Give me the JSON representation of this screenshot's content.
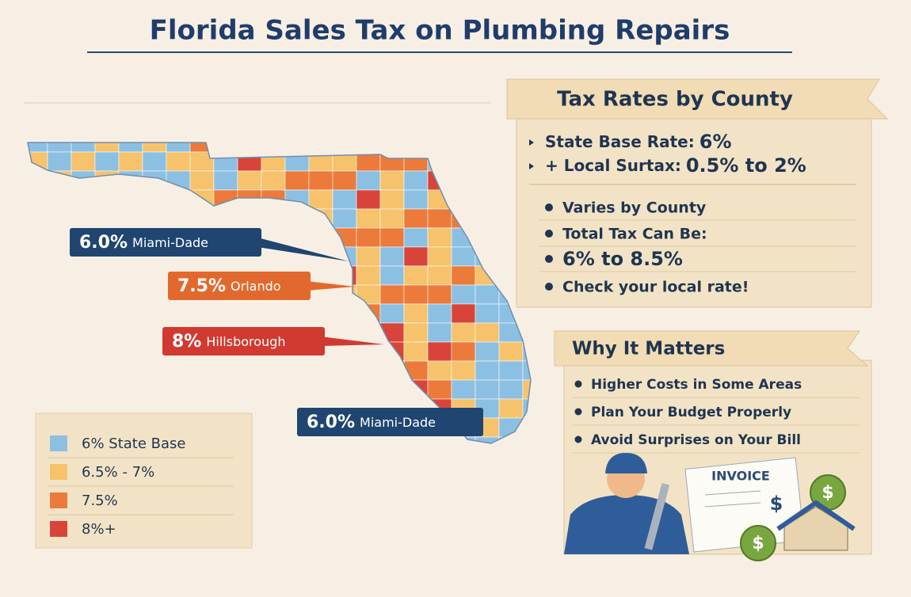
{
  "title": "Florida Sales Tax on Plumbing Repairs",
  "map_callouts": [
    {
      "rate": "6.0%",
      "place": "Miami-Dade",
      "color": "#1f4570"
    },
    {
      "rate": "7.5%",
      "place": "Orlando",
      "color": "#e2692d"
    },
    {
      "rate": "8%",
      "place": "Hillsborough",
      "color": "#d13a30"
    },
    {
      "rate": "6.0%",
      "place": "Miami-Dade",
      "color": "#1f4570"
    }
  ],
  "legend": [
    {
      "label": "6% State Base",
      "color": "#8cc0e3"
    },
    {
      "label": "6.5% - 7%",
      "color": "#f6c26b"
    },
    {
      "label": "7.5%",
      "color": "#ec7a3a"
    },
    {
      "label": "8%+",
      "color": "#d9443a"
    }
  ],
  "tax_panel": {
    "title": "Tax Rates by County",
    "rates": [
      {
        "label": "State Base Rate:",
        "value": "6%"
      },
      {
        "label": "+ Local Surtax:",
        "value": "0.5% to 2%"
      }
    ],
    "bullets": [
      "Varies by County",
      "Total Tax Can Be:",
      "6% to 8.5%",
      "Check your local rate!"
    ]
  },
  "why_panel": {
    "title": "Why It Matters",
    "bullets": [
      "Higher Costs in Some Areas",
      "Plan Your Budget Properly",
      "Avoid Surprises on Your Bill"
    ]
  },
  "illustration": {
    "invoice": "INVOICE",
    "currency": "$"
  }
}
